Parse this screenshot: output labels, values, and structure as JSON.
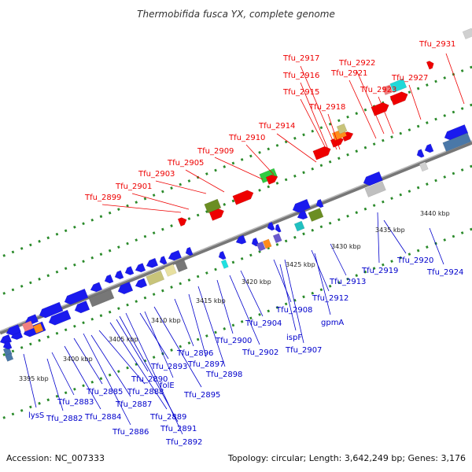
{
  "title": "Thermobifida fusca YX, complete genome",
  "footer": {
    "accession": "Accession: NC_007333",
    "summary": "Topology: circular; Length: 3,642,249 bp; Genes: 3,176"
  },
  "colors": {
    "forward_label": "#ee0000",
    "reverse_label": "#0000cc",
    "backbone": "#888888",
    "tick": "#2a8a2a"
  },
  "scale_labels": [
    {
      "id": "k3395",
      "text": "3395 kbp"
    },
    {
      "id": "k3400",
      "text": "3400 kbp"
    },
    {
      "id": "k3405",
      "text": "3405 kbp"
    },
    {
      "id": "k3410",
      "text": "3410 kbp"
    },
    {
      "id": "k3415",
      "text": "3415 kbp"
    },
    {
      "id": "k3420",
      "text": "3420 kbp"
    },
    {
      "id": "k3425",
      "text": "3425 kbp"
    },
    {
      "id": "k3430",
      "text": "3430 kbp"
    },
    {
      "id": "k3435",
      "text": "3435 kbp"
    },
    {
      "id": "k3440",
      "text": "3440 kbp"
    }
  ],
  "forward_labels": [
    "Tfu_2899",
    "Tfu_2901",
    "Tfu_2903",
    "Tfu_2905",
    "Tfu_2909",
    "Tfu_2910",
    "Tfu_2914",
    "Tfu_2915",
    "Tfu_2916",
    "Tfu_2917",
    "Tfu_2918",
    "Tfu_2921",
    "Tfu_2922",
    "Tfu_2923",
    "Tfu_2927",
    "Tfu_2931"
  ],
  "reverse_labels": [
    "lysS",
    "Tfu_2882",
    "Tfu_2883",
    "Tfu_2884",
    "Tfu_2885",
    "Tfu_2886",
    "Tfu_2887",
    "Tfu_2888",
    "Tfu_2889",
    "Tfu_2890",
    "Tfu_2891",
    "Tfu_2892",
    "Tfu_2893",
    "folE",
    "Tfu_2895",
    "Tfu_2896",
    "Tfu_2897",
    "Tfu_2898",
    "Tfu_2900",
    "Tfu_2902",
    "Tfu_2904",
    "ispF",
    "Tfu_2907",
    "Tfu_2908",
    "gpmA",
    "Tfu_2912",
    "Tfu_2913",
    "Tfu_2919",
    "Tfu_2920",
    "Tfu_2924"
  ]
}
